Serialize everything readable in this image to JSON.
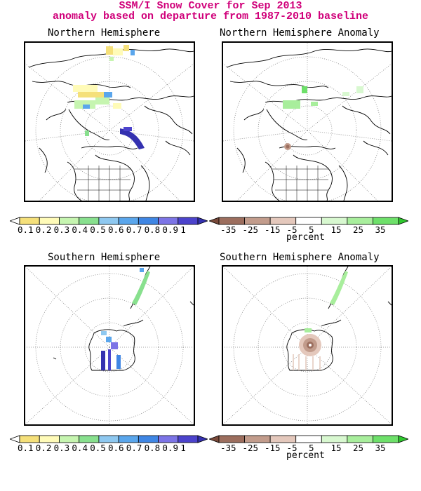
{
  "header": {
    "title": "SSM/I Snow Cover for Sep 2013",
    "subtitle": "anomaly based on departure from 1987-2010 baseline"
  },
  "panels": {
    "nh": {
      "title": "Northern Hemisphere"
    },
    "nh_anom": {
      "title": "Northern Hemisphere Anomaly"
    },
    "sh": {
      "title": "Southern Hemisphere"
    },
    "sh_anom": {
      "title": "Southern Hemisphere Anomaly"
    }
  },
  "colorbars": {
    "cover": {
      "labels": [
        "0.1",
        "0.2",
        "0.3",
        "0.4",
        "0.5",
        "0.6",
        "0.7",
        "0.8",
        "0.9",
        "1"
      ],
      "colors": [
        "#ffffff",
        "#f5e07a",
        "#fffbb8",
        "#c6f5b0",
        "#88e08e",
        "#8ec8f0",
        "#5aa6ec",
        "#3f86e4",
        "#7c74e6",
        "#4c43cc",
        "#3431b0"
      ]
    },
    "anomaly": {
      "labels": [
        "-35",
        "-25",
        "-15",
        "-5",
        "5",
        "15",
        "25",
        "35"
      ],
      "unit": "percent",
      "colors": [
        "#7a4a3a",
        "#9c6e5e",
        "#c29c8c",
        "#e4c8bc",
        "#ffffff",
        "#d8f8d0",
        "#a8ee9c",
        "#6ee06a",
        "#2fc82e"
      ]
    }
  },
  "legend_colors": {
    "nh_snow_low": "#f5e07a",
    "nh_snow_mid": "#c6f5b0",
    "nh_snow_blue": "#5aa6ec",
    "nh_snow_dark": "#3431b0",
    "anom_pos": "#a8ee9c",
    "anom_neg": "#9c6e5e"
  }
}
